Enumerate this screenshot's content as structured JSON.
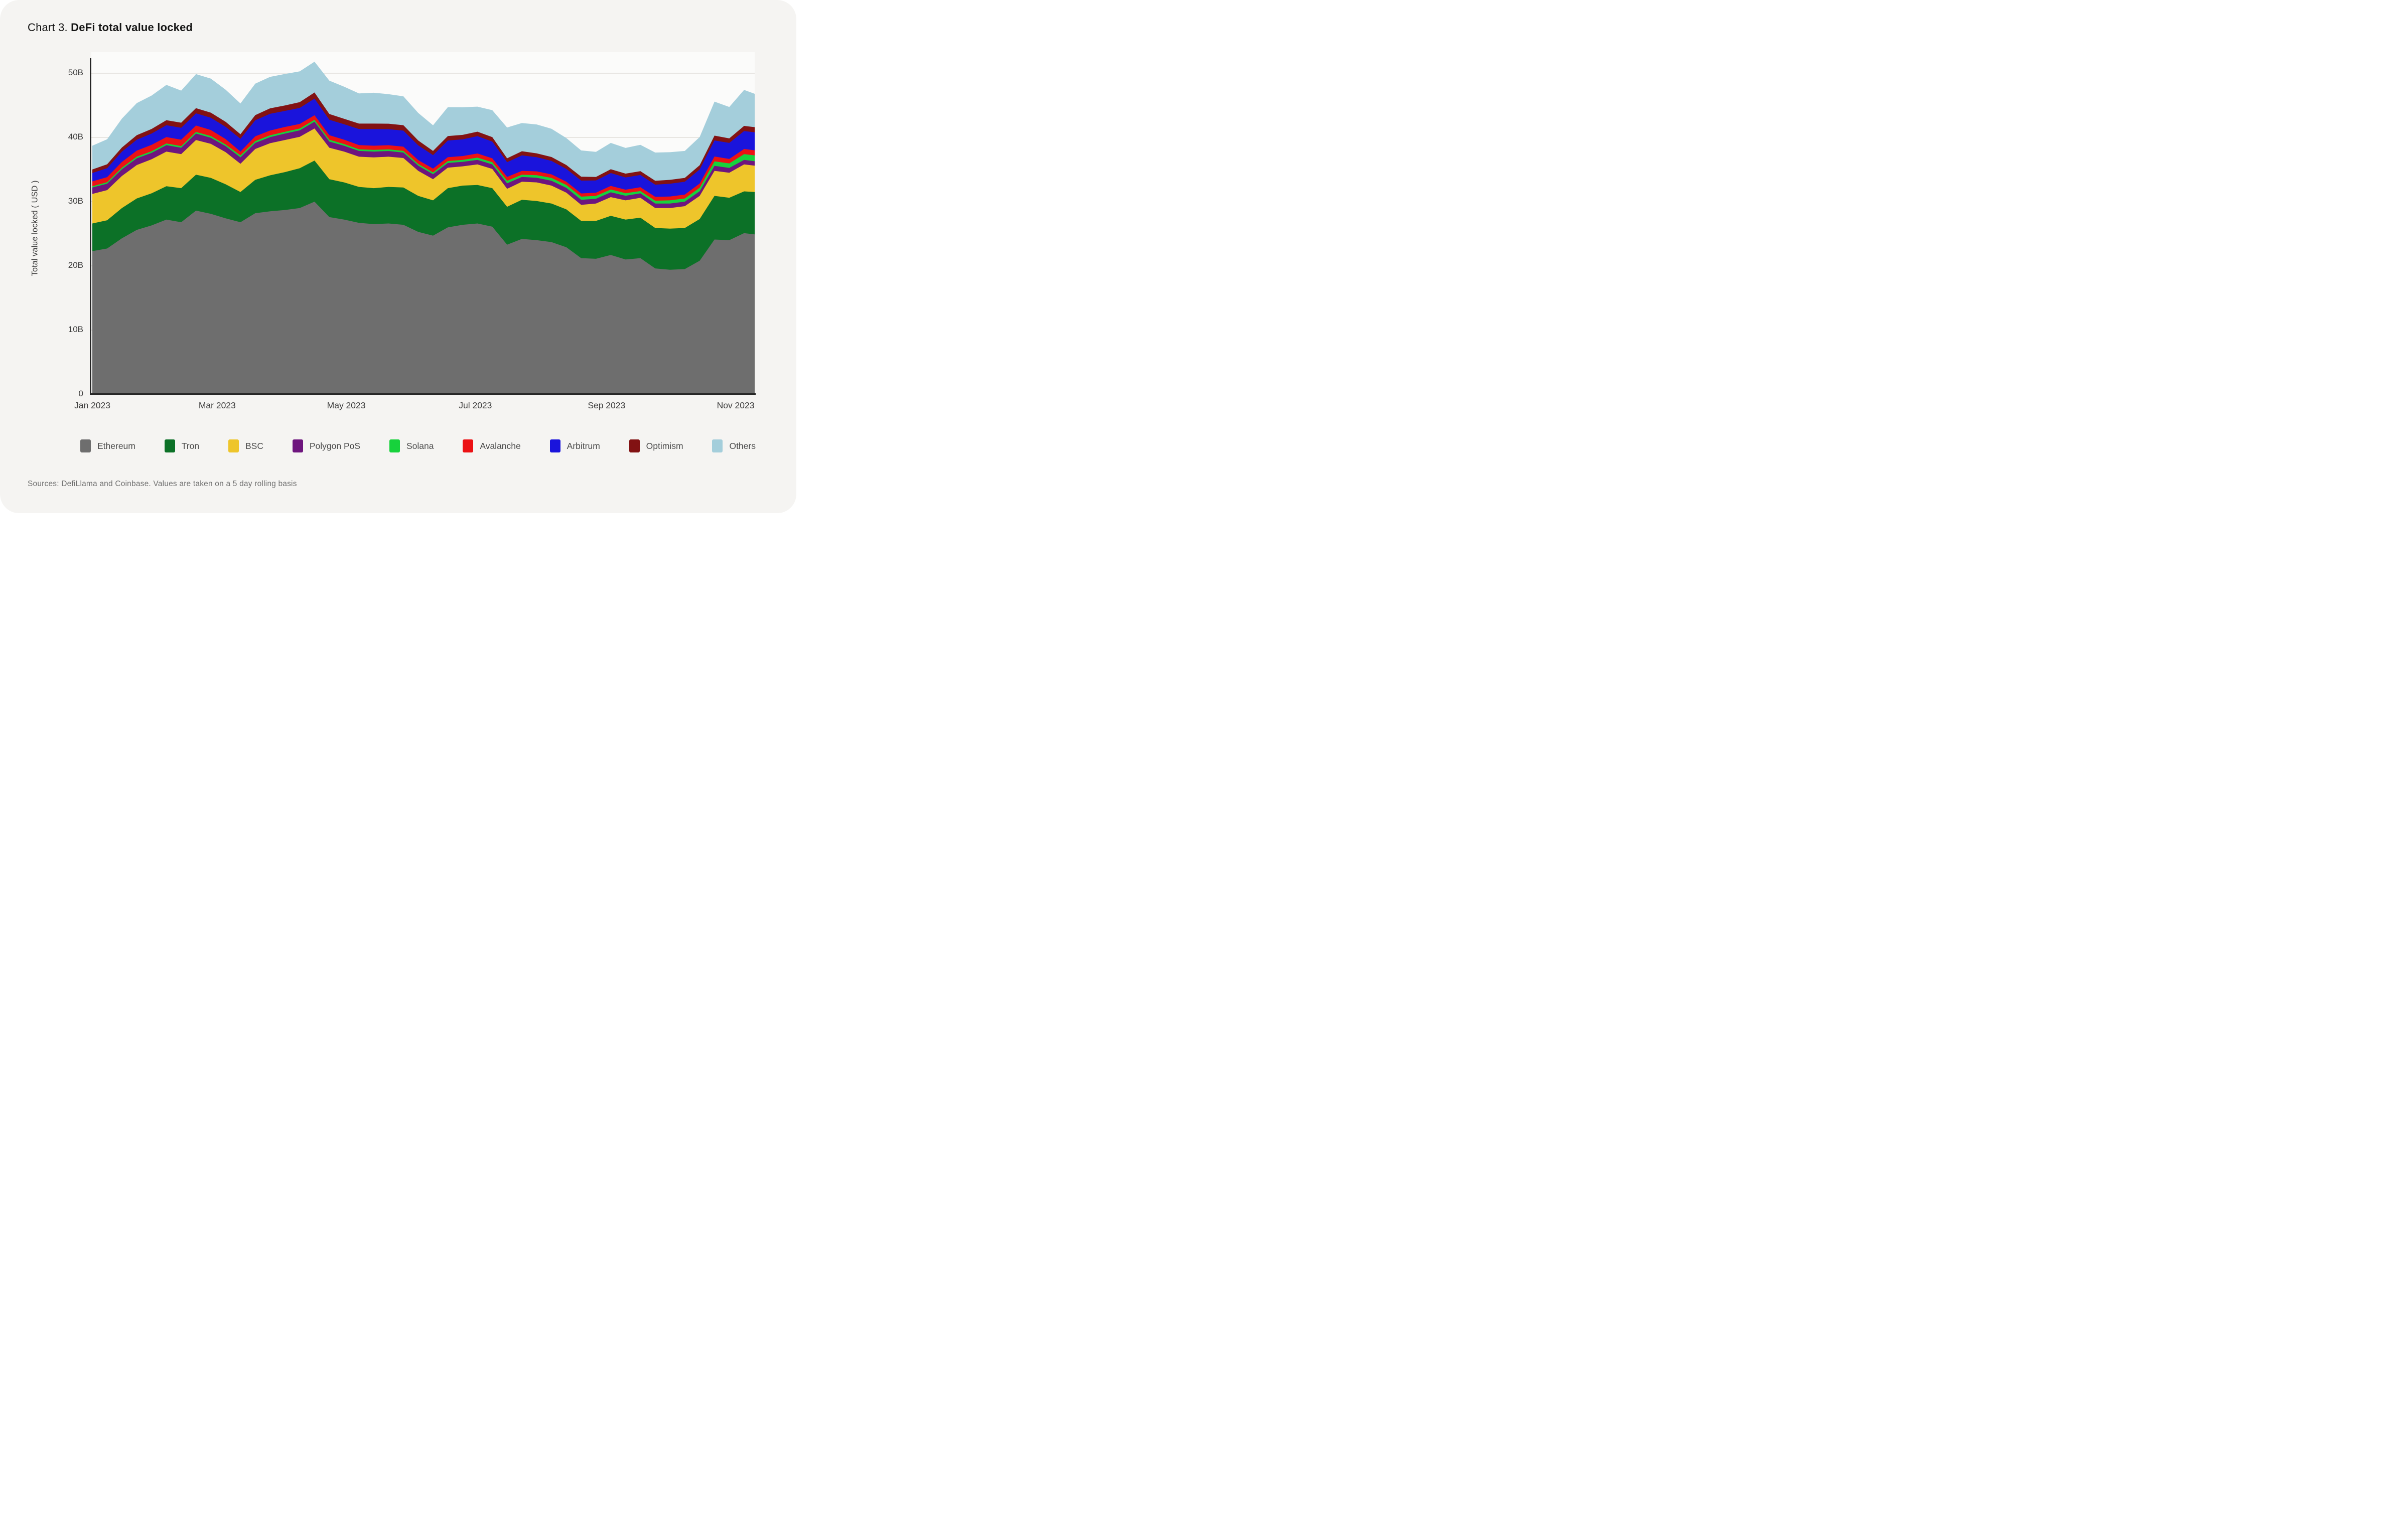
{
  "page": {
    "background": "#ffffff",
    "card_background": "#f5f4f2",
    "title_prefix": "Chart 3.",
    "title_emphasis": "DeFi total value locked",
    "source_note": "Sources: DefiLlama and Coinbase. Values are taken on a 5 day rolling basis"
  },
  "chart_data": {
    "type": "area",
    "stacked": true,
    "title": "Chart 3. DeFi total value locked",
    "ylabel": "Total value locked ( USD )",
    "xlabel": "",
    "unit": "billions of USD",
    "ylim": [
      0,
      52
    ],
    "grid": "horizontal",
    "legend_position": "bottom",
    "yticks": [
      {
        "value": 0,
        "label": "0"
      },
      {
        "value": 10,
        "label": "10B"
      },
      {
        "value": 20,
        "label": "20B"
      },
      {
        "value": 30,
        "label": "30B"
      },
      {
        "value": 40,
        "label": "40B"
      },
      {
        "value": 50,
        "label": "50B"
      }
    ],
    "xticks": [
      {
        "date": "2023-01-01",
        "label": "Jan 2023"
      },
      {
        "date": "2023-03-01",
        "label": "Mar 2023"
      },
      {
        "date": "2023-05-01",
        "label": "May 2023"
      },
      {
        "date": "2023-07-01",
        "label": "Jul 2023"
      },
      {
        "date": "2023-09-01",
        "label": "Sep 2023"
      },
      {
        "date": "2023-11-01",
        "label": "Nov 2023"
      }
    ],
    "x_dates": [
      "2023-01-01",
      "2023-01-08",
      "2023-01-15",
      "2023-01-22",
      "2023-01-29",
      "2023-02-05",
      "2023-02-12",
      "2023-02-19",
      "2023-02-26",
      "2023-03-05",
      "2023-03-12",
      "2023-03-19",
      "2023-03-26",
      "2023-04-02",
      "2023-04-09",
      "2023-04-16",
      "2023-04-23",
      "2023-04-30",
      "2023-05-07",
      "2023-05-14",
      "2023-05-21",
      "2023-05-28",
      "2023-06-04",
      "2023-06-11",
      "2023-06-18",
      "2023-06-25",
      "2023-07-02",
      "2023-07-09",
      "2023-07-16",
      "2023-07-23",
      "2023-07-30",
      "2023-08-06",
      "2023-08-13",
      "2023-08-20",
      "2023-08-27",
      "2023-09-03",
      "2023-09-10",
      "2023-09-17",
      "2023-09-24",
      "2023-10-01",
      "2023-10-08",
      "2023-10-15",
      "2023-10-22",
      "2023-10-29",
      "2023-11-05",
      "2023-11-10"
    ],
    "series": [
      {
        "name": "Ethereum",
        "color": "#6e6e6e",
        "values": [
          22.3,
          22.7,
          24.3,
          25.6,
          26.3,
          27.2,
          26.8,
          28.6,
          28.1,
          27.4,
          26.8,
          28.2,
          28.5,
          28.7,
          29.0,
          30.0,
          27.6,
          27.2,
          26.7,
          26.5,
          26.6,
          26.4,
          25.3,
          24.7,
          26.0,
          26.4,
          26.6,
          26.1,
          23.3,
          24.2,
          24.0,
          23.7,
          22.9,
          21.2,
          21.1,
          21.7,
          21.0,
          21.2,
          19.6,
          19.4,
          19.5,
          20.8,
          24.1,
          24.0,
          25.1,
          24.9
        ]
      },
      {
        "name": "Tron",
        "color": "#0c7127",
        "values": [
          4.3,
          4.4,
          4.7,
          4.9,
          5.0,
          5.2,
          5.3,
          5.6,
          5.6,
          5.3,
          4.7,
          5.2,
          5.6,
          5.9,
          6.2,
          6.4,
          5.9,
          5.8,
          5.6,
          5.6,
          5.7,
          5.8,
          5.6,
          5.5,
          6.1,
          6.1,
          6.0,
          6.0,
          5.9,
          6.1,
          6.1,
          6.0,
          5.9,
          5.8,
          5.9,
          6.1,
          6.2,
          6.3,
          6.3,
          6.4,
          6.4,
          6.5,
          6.8,
          6.6,
          6.5,
          6.6
        ]
      },
      {
        "name": "BSC",
        "color": "#eec52b",
        "values": [
          4.6,
          4.7,
          5.0,
          5.2,
          5.3,
          5.4,
          5.3,
          5.4,
          5.3,
          5.0,
          4.4,
          4.8,
          5.0,
          5.0,
          4.9,
          5.0,
          4.9,
          4.8,
          4.7,
          4.8,
          4.7,
          4.6,
          3.9,
          3.3,
          3.2,
          3.0,
          3.2,
          3.0,
          2.8,
          2.8,
          2.9,
          2.8,
          2.6,
          2.5,
          2.7,
          2.9,
          3.0,
          3.1,
          3.1,
          3.2,
          3.4,
          3.6,
          3.9,
          3.9,
          4.2,
          4.1
        ]
      },
      {
        "name": "Polygon PoS",
        "color": "#6e157e",
        "values": [
          1.0,
          1.0,
          1.05,
          1.05,
          1.0,
          1.0,
          1.0,
          1.0,
          0.95,
          0.95,
          1.0,
          0.95,
          0.95,
          1.0,
          1.0,
          1.05,
          0.95,
          0.9,
          0.9,
          0.9,
          0.88,
          0.85,
          0.8,
          0.78,
          0.72,
          0.7,
          0.7,
          0.7,
          0.85,
          0.75,
          0.72,
          0.75,
          0.75,
          0.78,
          0.75,
          0.75,
          0.72,
          0.7,
          0.7,
          0.7,
          0.7,
          0.72,
          0.78,
          0.75,
          0.7,
          0.7
        ]
      },
      {
        "name": "Solana",
        "color": "#17d23c",
        "values": [
          0.21,
          0.22,
          0.24,
          0.25,
          0.25,
          0.26,
          0.25,
          0.26,
          0.26,
          0.25,
          0.3,
          0.28,
          0.28,
          0.28,
          0.28,
          0.3,
          0.3,
          0.27,
          0.26,
          0.26,
          0.26,
          0.26,
          0.27,
          0.27,
          0.3,
          0.3,
          0.35,
          0.35,
          0.4,
          0.35,
          0.4,
          0.45,
          0.45,
          0.5,
          0.45,
          0.45,
          0.4,
          0.35,
          0.45,
          0.5,
          0.5,
          0.55,
          0.7,
          0.7,
          0.9,
          0.9
        ]
      },
      {
        "name": "Avalanche",
        "color": "#ec1114",
        "values": [
          0.75,
          0.8,
          0.9,
          0.95,
          1.0,
          1.0,
          1.0,
          1.0,
          0.95,
          0.85,
          0.6,
          0.75,
          0.75,
          0.75,
          0.72,
          0.7,
          0.7,
          0.68,
          0.65,
          0.65,
          0.65,
          0.65,
          0.6,
          0.6,
          0.6,
          0.6,
          0.65,
          0.6,
          0.6,
          0.6,
          0.6,
          0.55,
          0.5,
          0.5,
          0.5,
          0.55,
          0.55,
          0.6,
          0.6,
          0.6,
          0.6,
          0.65,
          0.75,
          0.7,
          0.8,
          0.8
        ]
      },
      {
        "name": "Arbitrum",
        "color": "#1a14dc",
        "values": [
          1.3,
          1.4,
          1.6,
          1.7,
          1.75,
          1.85,
          1.85,
          1.9,
          1.9,
          1.9,
          2.0,
          2.5,
          2.6,
          2.5,
          2.5,
          2.6,
          2.4,
          2.4,
          2.5,
          2.6,
          2.5,
          2.5,
          2.3,
          2.1,
          2.6,
          2.6,
          2.7,
          2.6,
          2.3,
          2.4,
          2.2,
          2.1,
          2.0,
          2.0,
          1.9,
          2.0,
          1.9,
          1.9,
          1.9,
          2.0,
          2.0,
          2.2,
          2.5,
          2.5,
          2.8,
          2.8
        ]
      },
      {
        "name": "Optimism",
        "color": "#821213",
        "values": [
          0.55,
          0.6,
          0.65,
          0.7,
          0.72,
          0.78,
          0.8,
          0.8,
          0.8,
          0.78,
          0.7,
          0.8,
          0.85,
          0.85,
          0.9,
          0.95,
          0.9,
          0.85,
          0.85,
          0.85,
          0.85,
          0.85,
          0.75,
          0.65,
          0.7,
          0.7,
          0.7,
          0.7,
          0.6,
          0.65,
          0.6,
          0.6,
          0.6,
          0.6,
          0.55,
          0.6,
          0.6,
          0.6,
          0.6,
          0.6,
          0.6,
          0.65,
          0.75,
          0.7,
          0.8,
          0.8
        ]
      },
      {
        "name": "Others",
        "color": "#a4cedb",
        "values": [
          3.7,
          3.9,
          4.5,
          5.0,
          5.2,
          5.5,
          5.0,
          5.3,
          5.3,
          5.0,
          4.8,
          4.9,
          4.9,
          4.9,
          4.8,
          4.8,
          5.2,
          5.0,
          4.7,
          4.8,
          4.6,
          4.5,
          4.3,
          4.0,
          4.5,
          4.3,
          3.9,
          4.2,
          4.8,
          4.4,
          4.5,
          4.4,
          4.2,
          4.1,
          3.9,
          4.1,
          4.0,
          4.1,
          4.4,
          4.3,
          4.2,
          4.4,
          5.3,
          4.9,
          5.6,
          5.2
        ]
      }
    ]
  }
}
